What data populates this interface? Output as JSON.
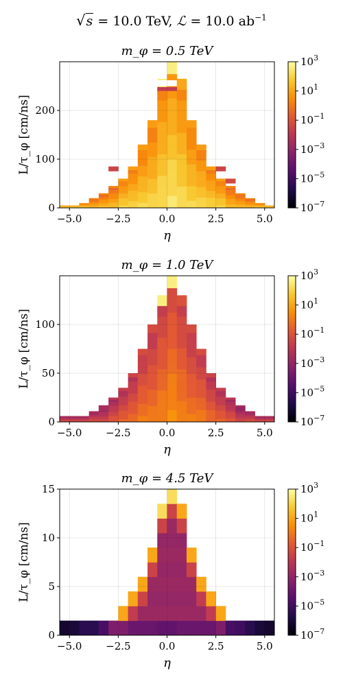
{
  "figure": {
    "suptitle_energy": "10.0 TeV",
    "suptitle_lumi": "10.0 ab",
    "suptitle_lumi_exp": "−1"
  },
  "colors": {
    "colormap": "inferno",
    "stops": [
      "#000004",
      "#1f0c48",
      "#550f6d",
      "#88226a",
      "#ba3655",
      "#e35933",
      "#f98e09",
      "#f8c932",
      "#fcffa4"
    ]
  },
  "chart_data": [
    {
      "type": "heatmap",
      "title": "m_φ = 0.5 TeV",
      "xlabel": "η",
      "ylabel": "L/τ_φ [cm/ns]",
      "x_edges": [
        -5.5,
        -5.0,
        -4.5,
        -4.0,
        -3.5,
        -3.0,
        -2.5,
        -2.0,
        -1.5,
        -1.0,
        -0.5,
        0.0,
        0.5,
        1.0,
        1.5,
        2.0,
        2.5,
        3.0,
        3.5,
        4.0,
        4.5,
        5.0,
        5.5
      ],
      "xlim": [
        -5.5,
        5.5
      ],
      "ylim": [
        0,
        300
      ],
      "xticks": [
        "−5.0",
        "−2.5",
        "0.0",
        "2.5",
        "5.0"
      ],
      "xtick_values": [
        -5,
        -2.5,
        0,
        2.5,
        5
      ],
      "yticks": [
        0,
        100,
        200
      ],
      "colorbar": {
        "log_min": -7,
        "log_max": 3,
        "ticks": [
          "10",
          "10",
          "10",
          "10",
          "10",
          "10"
        ],
        "tick_exps": [
          "−7",
          "−5",
          "−3",
          "−1",
          "1",
          "3"
        ],
        "tick_values": [
          -7,
          -5,
          -3,
          -1,
          1,
          3
        ]
      },
      "grid": true,
      "column_tops": [
        5,
        5,
        10,
        20,
        30,
        45,
        60,
        85,
        130,
        180,
        265,
        300,
        265,
        180,
        130,
        85,
        60,
        45,
        30,
        20,
        10,
        5
      ],
      "column_base_log": [
        2.5,
        2.5,
        2.0,
        1.5,
        1.5,
        1.5,
        2.0,
        2.0,
        2.0,
        2.0,
        2.2,
        2.4,
        2.2,
        2.0,
        2.0,
        2.0,
        2.0,
        1.5,
        1.5,
        1.5,
        2.0,
        2.5
      ],
      "red_caps": [
        {
          "x0": -0.5,
          "x1": 0.0,
          "y0": 240,
          "y1": 248,
          "log": -1.8
        },
        {
          "x0": 0.0,
          "x1": 0.5,
          "y0": 240,
          "y1": 248,
          "log": -1.8
        },
        {
          "x0": -3.0,
          "x1": -2.5,
          "y0": 75,
          "y1": 85,
          "log": -1.5
        },
        {
          "x0": 2.5,
          "x1": 3.0,
          "y0": 75,
          "y1": 85,
          "log": -1.5
        },
        {
          "x0": 3.0,
          "x1": 3.5,
          "y0": 50,
          "y1": 60,
          "log": -1.3
        }
      ]
    },
    {
      "type": "heatmap",
      "title": "m_φ = 1.0 TeV",
      "xlabel": "η",
      "ylabel": "L/τ_φ [cm/ns]",
      "x_edges": [
        -5.5,
        -5.0,
        -4.5,
        -4.0,
        -3.5,
        -3.0,
        -2.5,
        -2.0,
        -1.5,
        -1.0,
        -0.5,
        0.0,
        0.5,
        1.0,
        1.5,
        2.0,
        2.5,
        3.0,
        3.5,
        4.0,
        4.5,
        5.0,
        5.5
      ],
      "xlim": [
        -5.5,
        5.5
      ],
      "ylim": [
        0,
        150
      ],
      "xticks": [
        "−5.0",
        "−2.5",
        "0.0",
        "2.5",
        "5.0"
      ],
      "xtick_values": [
        -5,
        -2.5,
        0,
        2.5,
        5
      ],
      "yticks": [
        0,
        50,
        100
      ],
      "colorbar": {
        "log_min": -7,
        "log_max": 3,
        "ticks": [
          "10",
          "10",
          "10",
          "10",
          "10",
          "10"
        ],
        "tick_exps": [
          "−7",
          "−5",
          "−3",
          "−1",
          "1",
          "3"
        ],
        "tick_values": [
          -7,
          -5,
          -3,
          -1,
          1,
          3
        ]
      },
      "grid": true,
      "column_tops": [
        6,
        6,
        6,
        11,
        17,
        25,
        35,
        50,
        75,
        100,
        130,
        150,
        130,
        100,
        75,
        50,
        35,
        25,
        17,
        11,
        6,
        6
      ],
      "column_base_log": [
        -1.0,
        -1.0,
        -1.0,
        -1.0,
        -1.3,
        -0.8,
        -0.5,
        -0.3,
        0.0,
        0.0,
        0.2,
        0.5,
        0.2,
        0.0,
        0.0,
        -0.3,
        -0.5,
        -0.8,
        -1.3,
        -1.0,
        -1.0,
        -1.0
      ],
      "red_caps": [
        {
          "x0": -3.5,
          "x1": -3.0,
          "y0": 12,
          "y1": 17,
          "log": -2.5
        },
        {
          "x0": 3.0,
          "x1": 3.5,
          "y0": 12,
          "y1": 17,
          "log": -2.0
        }
      ]
    },
    {
      "type": "heatmap",
      "title": "m_φ = 4.5 TeV",
      "xlabel": "η",
      "ylabel": "L/τ_φ [cm/ns]",
      "x_edges": [
        -5.5,
        -5.0,
        -4.5,
        -4.0,
        -3.5,
        -3.0,
        -2.5,
        -2.0,
        -1.5,
        -1.0,
        -0.5,
        0.0,
        0.5,
        1.0,
        1.5,
        2.0,
        2.5,
        3.0,
        3.5,
        4.0,
        4.5,
        5.0,
        5.5
      ],
      "xlim": [
        -5.5,
        5.5
      ],
      "ylim": [
        0,
        15
      ],
      "xticks": [
        "−5.0",
        "−2.5",
        "0.0",
        "2.5",
        "5.0"
      ],
      "xtick_values": [
        -5,
        -2.5,
        0,
        2.5,
        5
      ],
      "yticks": [
        0,
        5,
        10,
        15
      ],
      "colorbar": {
        "log_min": -7,
        "log_max": 3,
        "ticks": [
          "10",
          "10",
          "10",
          "10",
          "10",
          "10"
        ],
        "tick_exps": [
          "−7",
          "−5",
          "−3",
          "−1",
          "1",
          "3"
        ],
        "tick_values": [
          -7,
          -5,
          -3,
          -1,
          1,
          3
        ]
      },
      "grid": true,
      "column_tops": [
        1.5,
        1.5,
        1.5,
        1.5,
        1.5,
        1.5,
        3,
        4.5,
        6,
        9,
        13.5,
        15,
        13.5,
        9,
        6,
        4.5,
        3,
        1.5,
        1.5,
        1.5,
        1.5,
        1.5
      ],
      "bottom_row_log": [
        -6.2,
        -6.0,
        -5.5,
        -5.5,
        -4.8,
        -3.5,
        -3.5,
        -4.0,
        -4.0,
        -4.0,
        -4.2,
        -4.2,
        -4.0,
        -4.0,
        -4.0,
        -4.0,
        -3.5,
        -4.8,
        -5.0,
        -5.5,
        -6.0,
        -6.2
      ],
      "upper_layers_log": {
        "orange": 1.0,
        "red": -1.5,
        "magenta": -2.8
      }
    }
  ]
}
